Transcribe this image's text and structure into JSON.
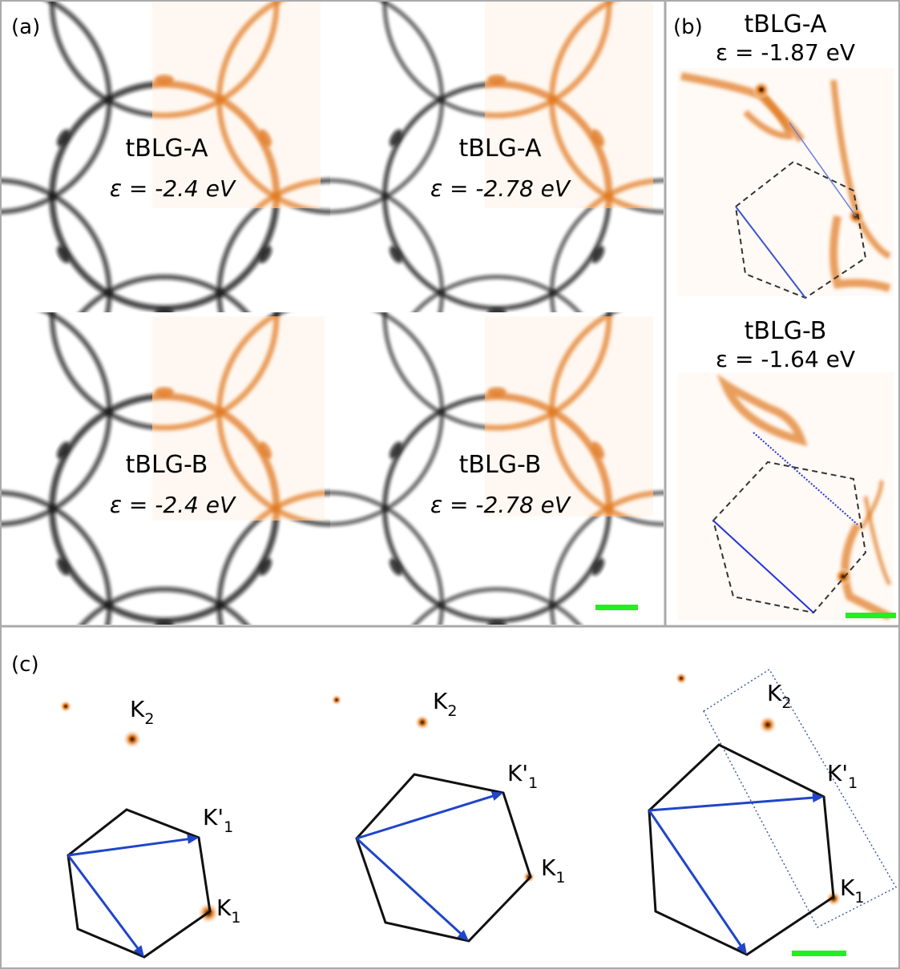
{
  "panels": {
    "a": {
      "label": "(a)",
      "images": [
        {
          "title": "tBLG-A",
          "energy": "ε = -2.4 eV"
        },
        {
          "title": "tBLG-A",
          "energy": "ε = -2.78 eV"
        },
        {
          "title": "tBLG-B",
          "energy": "ε = -2.4 eV"
        },
        {
          "title": "tBLG-B",
          "energy": "ε = -2.78 eV"
        }
      ]
    },
    "b": {
      "label": "(b)",
      "images": [
        {
          "title": "tBLG-A",
          "energy": "ε = -1.87 eV"
        },
        {
          "title": "tBLG-B",
          "energy": "ε = -1.64 eV"
        }
      ]
    },
    "c": {
      "label": "(c)",
      "images": [
        {
          "points": [
            {
              "main": "K",
              "sub": "2"
            },
            {
              "main": "K'",
              "sub": "1"
            },
            {
              "main": "K",
              "sub": "1"
            }
          ]
        },
        {
          "points": [
            {
              "main": "K",
              "sub": "2"
            },
            {
              "main": "K'",
              "sub": "1"
            },
            {
              "main": "K",
              "sub": "1"
            }
          ]
        },
        {
          "points": [
            {
              "main": "K",
              "sub": "2"
            },
            {
              "main": "K'",
              "sub": "1"
            },
            {
              "main": "K",
              "sub": "1"
            }
          ]
        }
      ]
    }
  }
}
